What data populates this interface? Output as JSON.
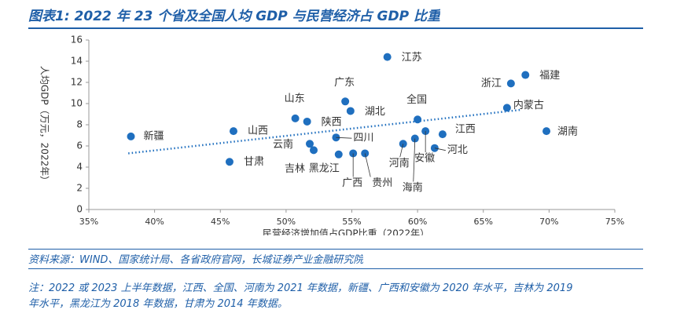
{
  "header": {
    "title": "图表1:  2022 年 23 个省及全国人均 GDP 与民营经济占 GDP 比重"
  },
  "chart_data": {
    "type": "scatter",
    "x_label": "民营经济增加值占GDP比重（2022年）",
    "y_label": "人均GDP（万元，2022年）",
    "xlim": [
      35,
      75
    ],
    "xticks": [
      {
        "value": 35,
        "label": "35%"
      },
      {
        "value": 40,
        "label": "40%"
      },
      {
        "value": 45,
        "label": "45%"
      },
      {
        "value": 50,
        "label": "50%"
      },
      {
        "value": 55,
        "label": "55%"
      },
      {
        "value": 60,
        "label": "60%"
      },
      {
        "value": 65,
        "label": "65%"
      },
      {
        "value": 70,
        "label": "70%"
      },
      {
        "value": 75,
        "label": "75%"
      }
    ],
    "ylim": [
      0,
      16
    ],
    "yticks": [
      0,
      2,
      4,
      6,
      8,
      10,
      12,
      14,
      16
    ],
    "color": "#1f6fbf",
    "points": {
      "labels": [
        "新疆",
        "甘肃",
        "山西",
        "山东",
        "陕西",
        "云南",
        "吉林",
        "黑龙江",
        "四川",
        "广东",
        "湖北",
        "广西",
        "贵州",
        "江苏",
        "河南",
        "全国",
        "海南",
        "安徽",
        "河北",
        "江西",
        "内蒙古",
        "浙江",
        "福建",
        "湖南"
      ],
      "x": [
        38.2,
        45.7,
        46.0,
        50.7,
        51.6,
        51.8,
        52.1,
        54.0,
        53.8,
        54.5,
        54.9,
        55.1,
        56.0,
        57.7,
        58.9,
        60.0,
        59.8,
        60.6,
        61.3,
        61.9,
        66.8,
        67.1,
        68.2,
        69.8
      ],
      "y": [
        6.9,
        4.5,
        7.4,
        8.6,
        8.3,
        6.2,
        5.6,
        5.2,
        6.8,
        10.2,
        9.3,
        5.3,
        5.3,
        14.4,
        6.2,
        8.5,
        6.7,
        7.4,
        5.8,
        7.1,
        9.6,
        11.9,
        12.7,
        7.4
      ]
    },
    "trendline": {
      "x": [
        38.0,
        67.8
      ],
      "y": [
        5.3,
        9.4
      ]
    }
  },
  "footer": {
    "source": "资料来源：WIND、国家统计局、各省政府官网，长城证券产业金融研究院",
    "notes": [
      "注：2022 或 2023 上半年数据，江西、全国、河南为 2021 年数据，新疆、广西和安徽为 2020 年水平，吉林为 2019",
      "年水平，黑龙江为 2018 年数据，甘肃为 2014 年数据。"
    ]
  }
}
